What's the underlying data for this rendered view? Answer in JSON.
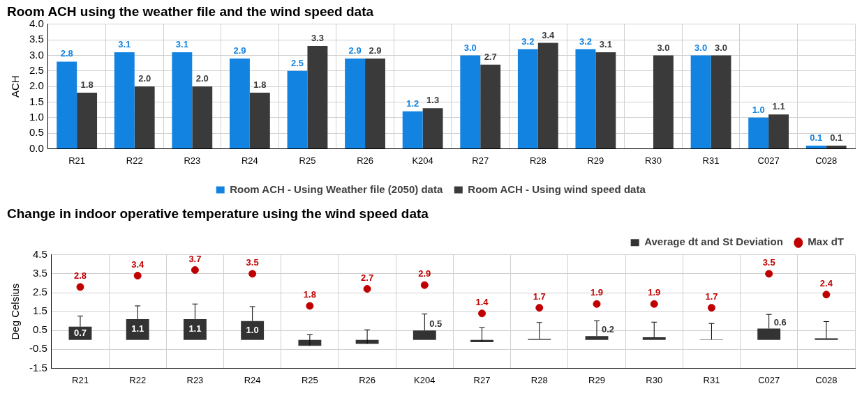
{
  "chart_data": [
    {
      "type": "bar",
      "title": "Room ACH using the weather file and the wind speed data",
      "ylabel": "ACH",
      "categories": [
        "R21",
        "R22",
        "R23",
        "R24",
        "R25",
        "R26",
        "K204",
        "R27",
        "R28",
        "R29",
        "R30",
        "R31",
        "C027",
        "C028"
      ],
      "series": [
        {
          "name": "Room ACH - Using Weather file (2050) data",
          "color": "#1283e0",
          "values": [
            2.8,
            3.1,
            3.1,
            2.9,
            2.5,
            2.9,
            1.2,
            3.0,
            3.2,
            3.2,
            null,
            3.0,
            1.0,
            0.1
          ],
          "value_labels": [
            "2.8",
            "3.1",
            "3.1",
            "2.9",
            "2.5",
            "2.9",
            "1.2",
            "3.0",
            "3.2",
            "3.2",
            null,
            "3.0",
            "1.0",
            "0.1"
          ]
        },
        {
          "name": "Room ACH - Using wind speed data",
          "color": "#3a3a3a",
          "values": [
            1.8,
            2.0,
            2.0,
            1.8,
            3.3,
            2.9,
            1.3,
            2.7,
            3.4,
            3.1,
            3.0,
            3.0,
            1.1,
            0.1
          ],
          "value_labels": [
            "1.8",
            "2.0",
            "2.0",
            "1.8",
            "3.3",
            "2.9",
            "1.3",
            "2.7",
            "3.4",
            "3.1",
            "3.0",
            "3.0",
            "1.1",
            "0.1"
          ]
        }
      ],
      "ylim": [
        0,
        4
      ],
      "yticks": [
        {
          "value": 0,
          "label": "0.0"
        },
        0.5,
        {
          "value": 1,
          "label": "1.0"
        },
        1.5,
        {
          "value": 2,
          "label": "2.0"
        },
        2.5,
        {
          "value": 3,
          "label": "3.0"
        },
        3.5,
        {
          "value": 4,
          "label": "4.0"
        }
      ],
      "grid": true,
      "legend": "bottom"
    },
    {
      "type": "bar",
      "title": "Change in indoor operative temperature using the wind speed data",
      "ylabel": "Deg Celsius",
      "categories": [
        "R21",
        "R22",
        "R23",
        "R24",
        "R25",
        "R26",
        "K204",
        "R27",
        "R28",
        "R29",
        "R30",
        "R31",
        "C027",
        "C028"
      ],
      "series": [
        {
          "name": "Average dt and St Deviation",
          "color": "#333333",
          "values": [
            0.7,
            1.1,
            1.1,
            1.0,
            -0.31,
            -0.21,
            0.5,
            -0.12,
            0.05,
            0.2,
            0.14,
            0.02,
            0.6,
            0.08
          ],
          "errors": [
            [
              0.7,
              1.26
            ],
            [
              1.1,
              1.8
            ],
            [
              1.1,
              1.9
            ],
            [
              1.0,
              1.76
            ],
            [
              -0.31,
              0.27
            ],
            [
              -0.21,
              0.53
            ],
            [
              0.5,
              1.37
            ],
            [
              -0.12,
              0.65
            ],
            [
              0.05,
              0.92
            ],
            [
              0.2,
              1.01
            ],
            [
              0.14,
              0.94
            ],
            [
              0.02,
              0.87
            ],
            [
              0.6,
              1.35
            ],
            [
              0.08,
              0.97
            ]
          ],
          "value_labels": [
            "0.7",
            "1.1",
            "1.1",
            "1.0",
            null,
            null,
            "0.5",
            null,
            null,
            "0.2",
            null,
            null,
            "0.6",
            null
          ]
        },
        {
          "name": "Max dT",
          "type": "scatter",
          "color": "#c00000",
          "x": [
            "R21",
            "R22",
            "R23",
            "R24",
            "R25",
            "R26",
            "K204",
            "R27",
            "R28",
            "R29",
            "R30",
            "R31",
            "C027",
            "C028"
          ],
          "values": [
            2.8,
            3.4,
            3.7,
            3.5,
            1.8,
            2.7,
            2.9,
            1.4,
            1.7,
            1.9,
            1.9,
            1.7,
            3.5,
            2.4
          ],
          "value_labels": [
            "2.8",
            "3.4",
            "3.7",
            "3.5",
            "1.8",
            "2.7",
            "2.9",
            "1.4",
            "1.7",
            "1.9",
            "1.9",
            "1.7",
            "3.5",
            "2.4"
          ]
        }
      ],
      "ylim": [
        -1.5,
        4.5
      ],
      "yticks": [
        -1.5,
        -0.5,
        0.5,
        1.5,
        2.5,
        3.5,
        4.5
      ],
      "grid": true,
      "legend": "top right",
      "marker": "circle"
    }
  ]
}
